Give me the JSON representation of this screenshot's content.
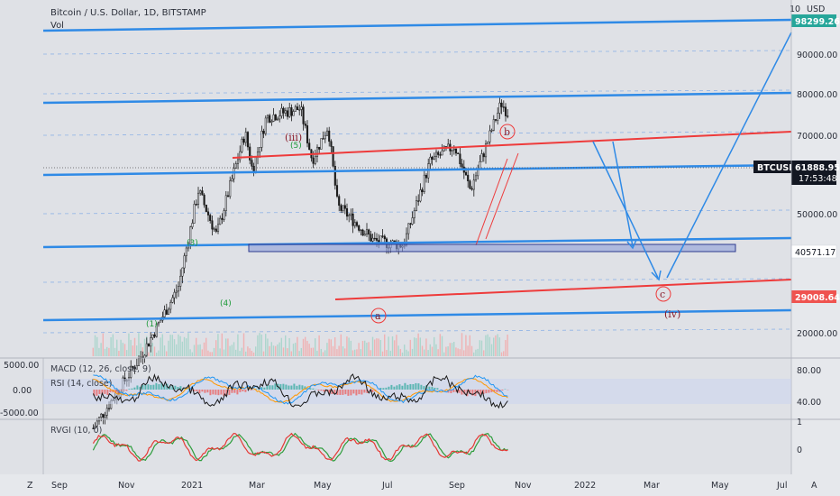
{
  "header": {
    "symbol_title": "Bitcoin / U.S. Dollar, 1D, BITSTAMP",
    "volume_label": "Vol"
  },
  "price_axis": {
    "currency_label": "USD",
    "top_digit": "10",
    "ticks": [
      "90000.00",
      "80000.00",
      "70000.00",
      "50000.00",
      "20000.00"
    ]
  },
  "price_tags": {
    "upper_target": "98299.26",
    "ticker": "BTCUSD",
    "current_price": "61888.95",
    "countdown": "17:53:48",
    "support_level": "40571.17",
    "lower_target": "29008.64"
  },
  "time_axis": {
    "labels": [
      "Sep",
      "Nov",
      "2021",
      "Mar",
      "May",
      "Jul",
      "Sep",
      "Nov",
      "2022",
      "Mar",
      "May",
      "Jul"
    ],
    "left_button": "Z",
    "right_button": "A"
  },
  "indicators": {
    "macd_label": "MACD (12, 26, close, 9)",
    "rsi_label": "RSI (14, close)",
    "rvgi_label": "RVGI (10, 0)",
    "macd_ticks": [
      "5000.00",
      "0.00",
      "-5000.00"
    ],
    "rsi_ticks": [
      "80.00",
      "40.00"
    ],
    "rvgi_ticks": [
      "1",
      "0"
    ]
  },
  "wave_labels": {
    "iii": "(iii)",
    "five": "(5)",
    "three": "(3)",
    "four": "(4)",
    "one": "(1)",
    "b": "b",
    "a": "a",
    "c": "c",
    "iv": "(iv)"
  },
  "colors": {
    "background": "#dfe1e6",
    "channel_blue": "#2f8ae6",
    "trend_red": "#ee3b3b",
    "candle_up": "#1a1a1a",
    "support_box": "#8e9fd8",
    "tag_green": "#26a69a",
    "tag_red": "#ef5350"
  },
  "chart_data": {
    "type": "candlestick",
    "x_range": [
      "2020-08-15",
      "2022-07-20"
    ],
    "y_scale": "log",
    "y_range": [
      16000,
      105000
    ],
    "price_key_points": [
      {
        "date": "2020-10-01",
        "close": 10700
      },
      {
        "date": "2020-11-15",
        "close": 16000
      },
      {
        "date": "2020-12-20",
        "close": 23500
      },
      {
        "date": "2021-01-08",
        "close": 40500
      },
      {
        "date": "2021-01-25",
        "close": 31500
      },
      {
        "date": "2021-02-21",
        "close": 56000
      },
      {
        "date": "2021-02-28",
        "close": 45000
      },
      {
        "date": "2021-03-13",
        "close": 61000
      },
      {
        "date": "2021-04-14",
        "close": 64000
      },
      {
        "date": "2021-04-25",
        "close": 48000
      },
      {
        "date": "2021-05-10",
        "close": 58000
      },
      {
        "date": "2021-05-19",
        "close": 37000
      },
      {
        "date": "2021-05-30",
        "close": 35000
      },
      {
        "date": "2021-06-22",
        "close": 30500
      },
      {
        "date": "2021-07-20",
        "close": 29800
      },
      {
        "date": "2021-08-14",
        "close": 47500
      },
      {
        "date": "2021-09-06",
        "close": 52000
      },
      {
        "date": "2021-09-21",
        "close": 40500
      },
      {
        "date": "2021-10-20",
        "close": 66000
      },
      {
        "date": "2021-10-27",
        "close": 61888.95
      }
    ],
    "horizontal_levels": [
      98299.26,
      61888.95,
      40571.17,
      29008.64
    ]
  }
}
